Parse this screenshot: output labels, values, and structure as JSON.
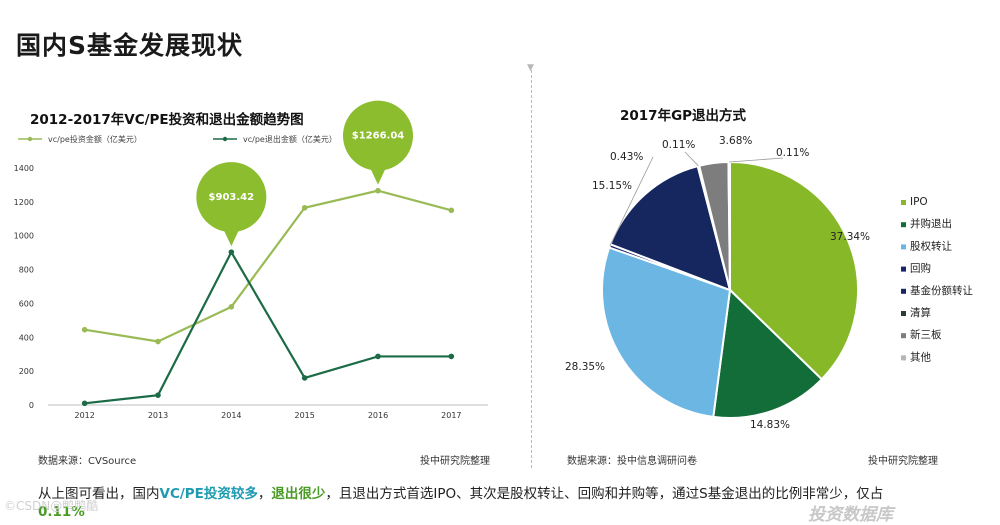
{
  "page": {
    "title": "国内S基金发展现状"
  },
  "chart_data": [
    {
      "type": "line",
      "title": "2012-2017年VC/PE投资和退出金额趋势图",
      "categories": [
        "2012",
        "2013",
        "2014",
        "2015",
        "2016",
        "2017"
      ],
      "series": [
        {
          "name": "vc/pe投资金额（亿美元）",
          "color": "#9aba56",
          "values": [
            445,
            375,
            580,
            1165,
            1266,
            1150
          ]
        },
        {
          "name": "vc/pe退出金额（亿美元）",
          "color": "#1b6b46",
          "values": [
            10,
            58,
            903,
            160,
            287,
            287
          ]
        }
      ],
      "y_ticks": [
        0,
        200,
        400,
        600,
        800,
        1000,
        1200,
        1400
      ],
      "ylim": [
        0,
        1400
      ],
      "callouts": [
        {
          "label": "$903.42",
          "series": 1,
          "index": 2
        },
        {
          "label": "$1266.04",
          "series": 0,
          "index": 4
        }
      ],
      "legend": "top-left"
    },
    {
      "type": "pie",
      "title": "2017年GP退出方式",
      "slices": [
        {
          "label": "IPO",
          "value": 37.34,
          "text": "37.34%",
          "color": "#86b828"
        },
        {
          "label": "并购退出",
          "value": 14.83,
          "text": "14.83%",
          "color": "#126d38"
        },
        {
          "label": "股权转让",
          "value": 28.35,
          "text": "28.35%",
          "color": "#6cb6e3"
        },
        {
          "label": "回购",
          "value": 0.43,
          "text": "0.43%",
          "color": "#17256a"
        },
        {
          "label": "基金份额转让",
          "value": 15.15,
          "text": "15.15%",
          "color": "#15275e"
        },
        {
          "label": "清算",
          "value": 0.11,
          "text": "0.11%",
          "color": "#2a3d3a"
        },
        {
          "label": "新三板",
          "value": 3.68,
          "text": "3.68%",
          "color": "#7d7d7d"
        },
        {
          "label": "其他",
          "value": 0.11,
          "text": "0.11%",
          "color": "#b5b5b5"
        }
      ],
      "legend": "right"
    }
  ],
  "footer": {
    "left_source": "数据来源：CVSource",
    "left_org": "投中研究院整理",
    "right_source": "数据来源：投中信息调研问卷",
    "right_org": "投中研究院整理"
  },
  "summary": {
    "part1": "从上图可看出，国内",
    "hl1": "VC/PE投资较多",
    "part2": "，",
    "hl2": "退出很少",
    "part3": "，且退出方式首选IPO、其次是股权转让、回购和并购等，通过S基金退出的比例非常少，仅占",
    "hl3": "0.11%"
  },
  "watermarks": {
    "left": "©CSDN@鸭鸭酷",
    "right": "投资数据库"
  }
}
